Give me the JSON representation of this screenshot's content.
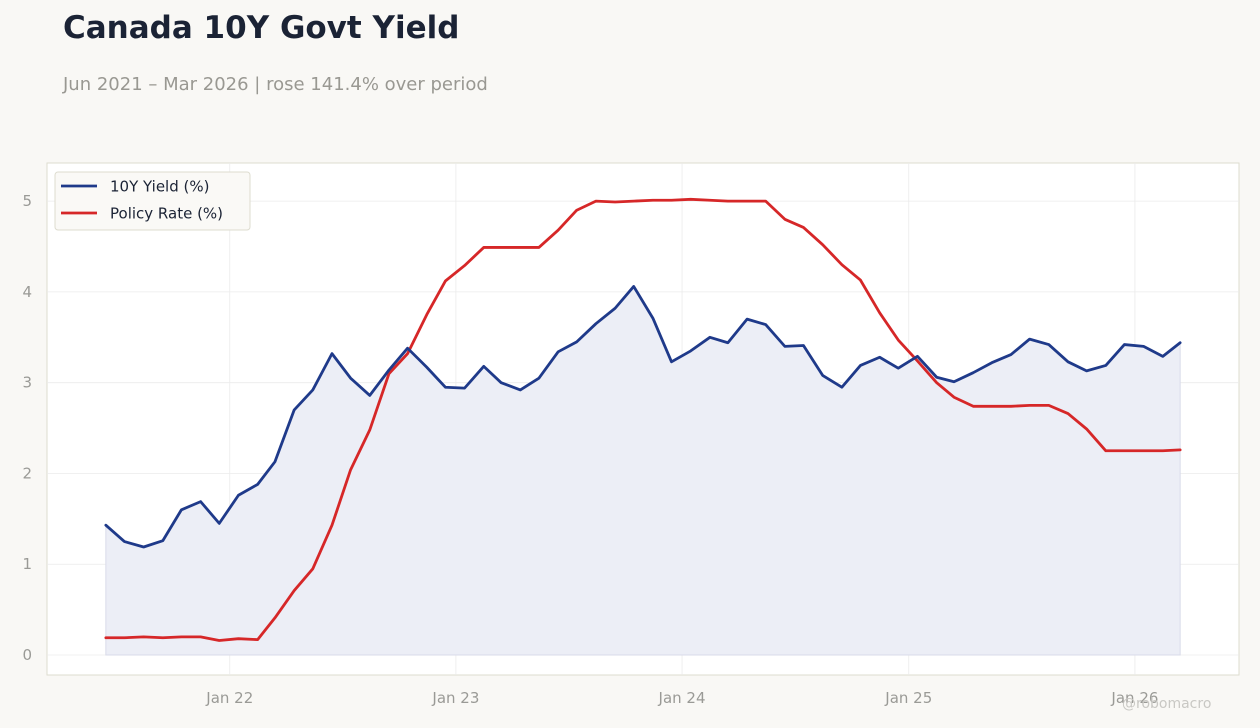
{
  "header": {
    "title": "Canada 10Y Govt Yield",
    "subtitle": "Jun 2021 – Mar 2026 | rose 141.4% over period"
  },
  "watermark": "@robomacro",
  "colors": {
    "yield": "#1f3a8a",
    "policy": "#d62728",
    "fill": "#eceef6",
    "grid": "#ebebeb",
    "frame": "#dddccf"
  },
  "chart_data": {
    "type": "line",
    "x": [
      "2021-06",
      "2021-07",
      "2021-08",
      "2021-09",
      "2021-10",
      "2021-11",
      "2021-12",
      "2022-01",
      "2022-02",
      "2022-03",
      "2022-04",
      "2022-05",
      "2022-06",
      "2022-07",
      "2022-08",
      "2022-09",
      "2022-10",
      "2022-11",
      "2022-12",
      "2023-01",
      "2023-02",
      "2023-03",
      "2023-04",
      "2023-05",
      "2023-06",
      "2023-07",
      "2023-08",
      "2023-09",
      "2023-10",
      "2023-11",
      "2023-12",
      "2024-01",
      "2024-02",
      "2024-03",
      "2024-04",
      "2024-05",
      "2024-06",
      "2024-07",
      "2024-08",
      "2024-09",
      "2024-10",
      "2024-11",
      "2024-12",
      "2025-01",
      "2025-02",
      "2025-03",
      "2025-04",
      "2025-05",
      "2025-06",
      "2025-07",
      "2025-08",
      "2025-09",
      "2025-10",
      "2025-11",
      "2025-12",
      "2026-01",
      "2026-02",
      "2026-03"
    ],
    "series": [
      {
        "name": "10Y Yield (%)",
        "values": [
          1.43,
          1.25,
          1.19,
          1.26,
          1.6,
          1.69,
          1.45,
          1.76,
          1.88,
          2.13,
          2.7,
          2.92,
          3.32,
          3.05,
          2.86,
          3.14,
          3.38,
          3.17,
          2.95,
          2.94,
          3.18,
          3.0,
          2.92,
          3.05,
          3.34,
          3.45,
          3.65,
          3.82,
          4.06,
          3.71,
          3.23,
          3.35,
          3.5,
          3.44,
          3.7,
          3.64,
          3.4,
          3.41,
          3.08,
          2.95,
          3.19,
          3.28,
          3.16,
          3.29,
          3.06,
          3.01,
          3.11,
          3.22,
          3.31,
          3.48,
          3.42,
          3.23,
          3.13,
          3.19,
          3.42,
          3.4,
          3.29,
          3.44
        ]
      },
      {
        "name": "Policy Rate (%)",
        "values": [
          0.19,
          0.19,
          0.2,
          0.19,
          0.2,
          0.2,
          0.16,
          0.18,
          0.17,
          0.41,
          0.71,
          0.95,
          1.43,
          2.04,
          2.48,
          3.1,
          3.32,
          3.75,
          4.12,
          4.29,
          4.49,
          4.49,
          4.49,
          4.49,
          4.68,
          4.9,
          5.0,
          4.99,
          5.0,
          5.01,
          5.01,
          5.02,
          5.01,
          5.0,
          5.0,
          5.0,
          4.8,
          4.71,
          4.52,
          4.3,
          4.13,
          3.77,
          3.47,
          3.24,
          3.0,
          2.84,
          2.74,
          2.74,
          2.74,
          2.75,
          2.75,
          2.66,
          2.49,
          2.25,
          2.25,
          2.25,
          2.25,
          2.26
        ]
      }
    ],
    "xticks": [
      {
        "label": "Jan 22",
        "date": "2022-01"
      },
      {
        "label": "Jan 23",
        "date": "2023-01"
      },
      {
        "label": "Jan 24",
        "date": "2024-01"
      },
      {
        "label": "Jan 25",
        "date": "2025-01"
      },
      {
        "label": "Jan 26",
        "date": "2026-01"
      }
    ],
    "yticks": [
      0,
      1,
      2,
      3,
      4,
      5
    ],
    "ylim": [
      -0.22,
      5.42
    ],
    "xlim": [
      "2021-03-12",
      "2026-06-18"
    ],
    "grid": true,
    "legend": "top-left",
    "fill_under": "10Y Yield (%)"
  }
}
